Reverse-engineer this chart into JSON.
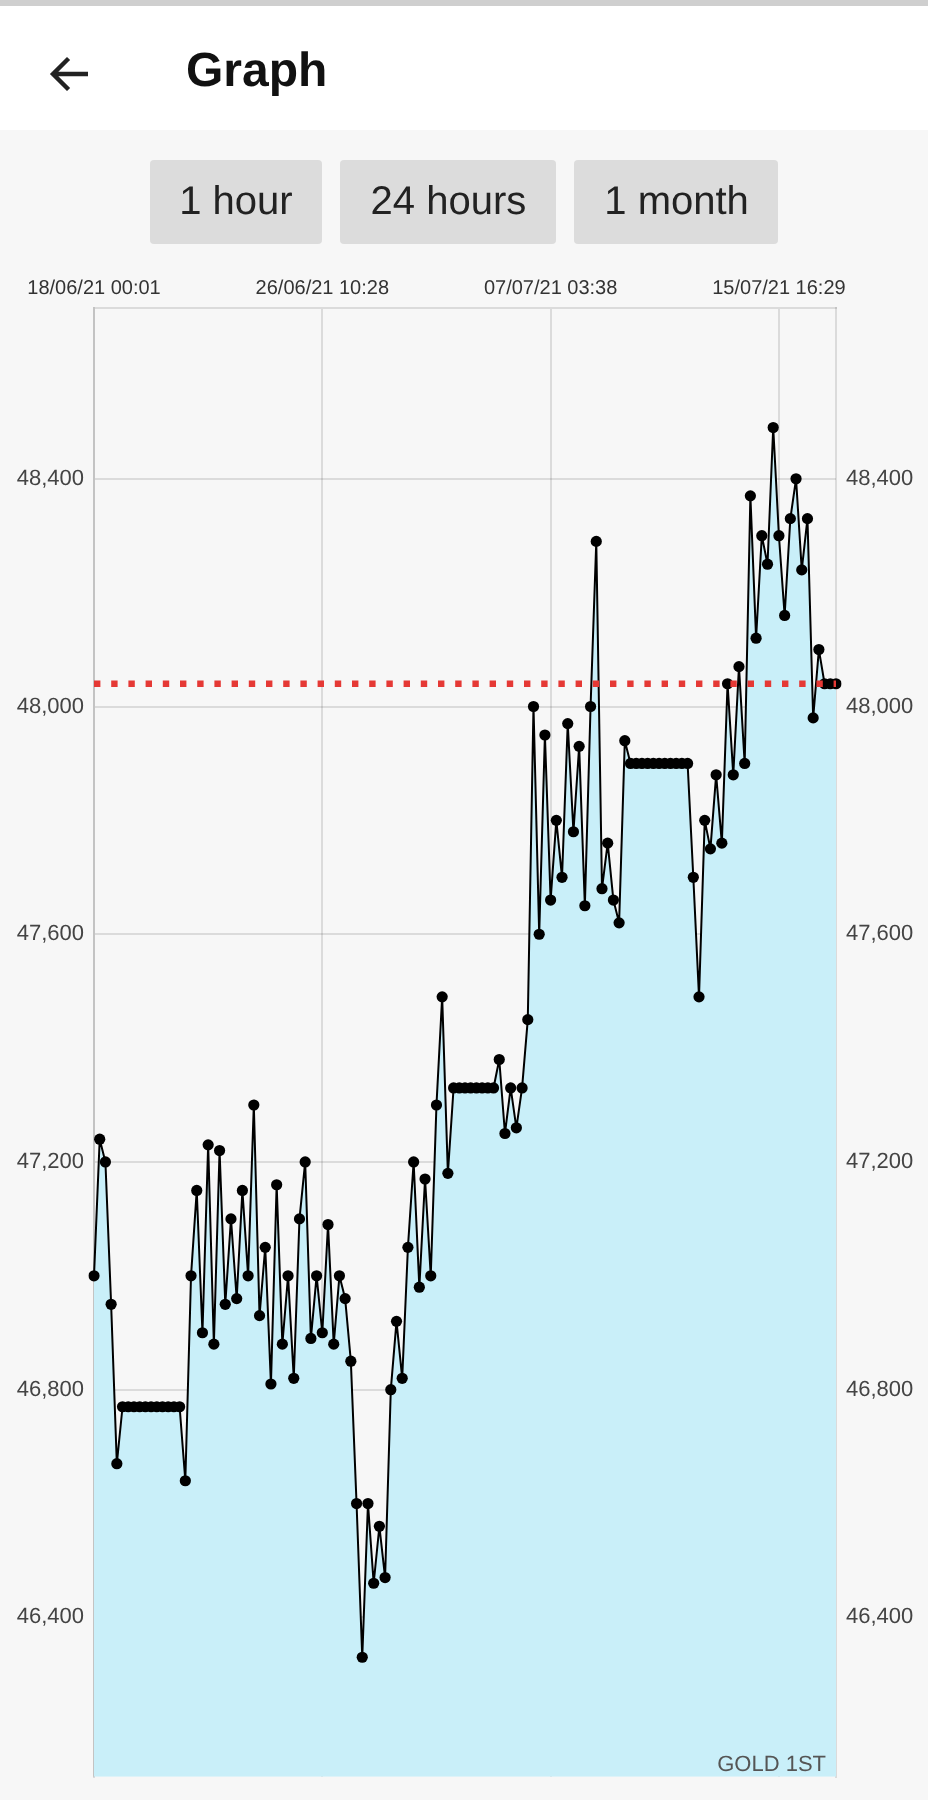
{
  "chart_data": {
    "type": "area",
    "title": "Graph",
    "annotations": [
      "1 hour",
      "24 hours",
      "1 month",
      "GOLD 1ST"
    ],
    "categories": [
      "18/06/21 00:01",
      null,
      null,
      null,
      null,
      null,
      null,
      null,
      null,
      null,
      null,
      null,
      null,
      null,
      null,
      null,
      null,
      null,
      null,
      null,
      null,
      null,
      null,
      null,
      null,
      null,
      null,
      null,
      null,
      null,
      null,
      null,
      null,
      null,
      null,
      null,
      null,
      null,
      null,
      null,
      "26/06/21 10:28",
      null,
      null,
      null,
      null,
      null,
      null,
      null,
      null,
      null,
      null,
      null,
      null,
      null,
      null,
      null,
      null,
      null,
      null,
      null,
      null,
      null,
      null,
      null,
      null,
      null,
      null,
      null,
      null,
      null,
      null,
      null,
      null,
      null,
      null,
      null,
      null,
      null,
      null,
      null,
      "07/07/21 03:38",
      null,
      null,
      null,
      null,
      null,
      null,
      null,
      null,
      null,
      null,
      null,
      null,
      null,
      null,
      null,
      null,
      null,
      null,
      null,
      null,
      null,
      null,
      null,
      null,
      null,
      null,
      null,
      null,
      null,
      null,
      null,
      null,
      null,
      null,
      null,
      null,
      null,
      null,
      null,
      "15/07/21 16:29",
      null,
      null,
      null,
      null,
      null,
      null,
      null,
      null,
      null,
      null
    ],
    "series": [
      {
        "color": "#c9eff9",
        "values": [
          47000,
          47240,
          47200,
          46950,
          46670,
          46770,
          46770,
          46770,
          46770,
          46770,
          46770,
          46770,
          46770,
          46770,
          46770,
          46770,
          46640,
          47000,
          47150,
          46900,
          47230,
          46880,
          47220,
          46950,
          47100,
          46960,
          47150,
          47000,
          47300,
          46930,
          47050,
          46810,
          47160,
          46880,
          47000,
          46820,
          47100,
          47200,
          46890,
          47000,
          46900,
          47090,
          46880,
          47000,
          46960,
          46850,
          46600,
          46330,
          46600,
          46460,
          46560,
          46470,
          46800,
          46920,
          46820,
          47050,
          47200,
          46980,
          47170,
          47000,
          47300,
          47490,
          47180,
          47330,
          47330,
          47330,
          47330,
          47330,
          47330,
          47330,
          47330,
          47380,
          47250,
          47330,
          47260,
          47330,
          47450,
          48000,
          47600,
          47950,
          47660,
          47800,
          47700,
          47970,
          47780,
          47930,
          47650,
          48000,
          48290,
          47680,
          47760,
          47660,
          47620,
          47940,
          47900,
          47900,
          47900,
          47900,
          47900,
          47900,
          47900,
          47900,
          47900,
          47900,
          47900,
          47700,
          47490,
          47800,
          47750,
          47880,
          47760,
          48040,
          47880,
          48070,
          47900,
          48370,
          48120,
          48300,
          48250,
          48490,
          48300,
          48160,
          48330,
          48400,
          48240,
          48330,
          47980,
          48100,
          48040,
          48040,
          48040
        ]
      }
    ],
    "ylim": [
      46120,
      48700
    ],
    "yticks": [
      {
        "value": 46400,
        "label": "46,400"
      },
      {
        "value": 46800,
        "label": "46,800"
      },
      {
        "value": 47200,
        "label": "47,200"
      },
      {
        "value": 47600,
        "label": "47,600"
      },
      {
        "value": 48000,
        "label": "48,000"
      },
      {
        "value": 48400,
        "label": "48,400"
      }
    ],
    "y2lim": [
      46120,
      48700
    ],
    "y2ticks": [
      {
        "value": 46400,
        "label": "46,400"
      },
      {
        "value": 46800,
        "label": "46,800"
      },
      {
        "value": 47200,
        "label": "47,200"
      },
      {
        "value": 47600,
        "label": "47,600"
      },
      {
        "value": 48000,
        "label": "48,000"
      },
      {
        "value": 48400,
        "label": "48,400"
      }
    ],
    "ref_lines": [
      {
        "axis": "y",
        "value": 48040,
        "color": "#e53935",
        "line_style": "dotted"
      }
    ],
    "grid": true,
    "marker": "circle"
  }
}
